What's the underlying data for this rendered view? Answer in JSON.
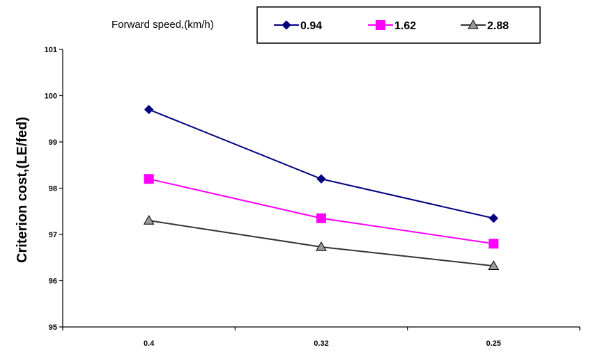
{
  "chart_data": {
    "type": "line",
    "categories": [
      "0.4",
      "0.32",
      "0.25"
    ],
    "xlabel": "",
    "ylabel": "Criterion cost,(LE/fed)",
    "ylim": [
      95,
      101
    ],
    "yticks": [
      "95",
      "96",
      "97",
      "98",
      "99",
      "100",
      "101"
    ],
    "grid": false,
    "legend": {
      "title": "Forward speed,(km/h)",
      "placement": "top"
    },
    "series": [
      {
        "name": "0.94",
        "values": [
          99.7,
          98.2,
          97.35
        ],
        "color": "#000080",
        "marker": "diamond"
      },
      {
        "name": "1.62",
        "values": [
          98.2,
          97.35,
          96.8
        ],
        "color": "#FF00FF",
        "marker": "square"
      },
      {
        "name": "2.88",
        "values": [
          97.3,
          96.73,
          96.32
        ],
        "color": "#333333",
        "marker": "triangle"
      }
    ]
  }
}
